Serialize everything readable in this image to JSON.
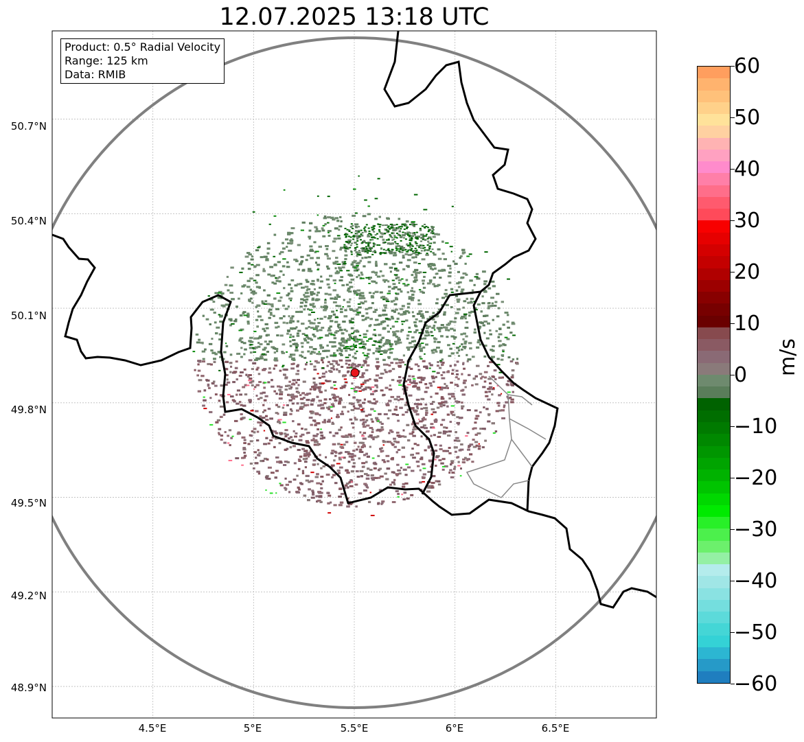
{
  "title": "12.07.2025 13:18 UTC",
  "info": {
    "product": "Product: 0.5° Radial Velocity",
    "range": "Range: 125 km",
    "data": "Data: RMIB"
  },
  "map": {
    "lon_range": [
      4.0,
      7.0
    ],
    "lat_range": [
      48.8,
      50.98
    ],
    "radar_site": {
      "lon": 5.51,
      "lat": 49.92,
      "color": "#e8141b"
    },
    "range_ring_color": "#808080",
    "grid": true,
    "y_ticks": [
      "50.7°N",
      "50.4°N",
      "50.1°N",
      "49.8°N",
      "49.5°N",
      "49.2°N",
      "48.9°N"
    ],
    "x_ticks": [
      "4.5°E",
      "5°E",
      "5.5°E",
      "6°E",
      "6.5°E"
    ]
  },
  "colorbar": {
    "label": "m/s",
    "range": [
      -60,
      60
    ],
    "ticks": [
      "60",
      "50",
      "40",
      "30",
      "20",
      "10",
      "0",
      "−10",
      "−20",
      "−30",
      "−40",
      "−50",
      "−60"
    ],
    "colors_top_to_bottom": [
      "#ff9e5e",
      "#ffb36e",
      "#ffc17a",
      "#ffd18a",
      "#ffe29a",
      "#ffd1a1",
      "#ffb3b3",
      "#ffa1c1",
      "#ff8bcc",
      "#ff7fa8",
      "#ff6e8a",
      "#ff5a6e",
      "#ff4a5a",
      "#f80000",
      "#e60000",
      "#d40000",
      "#c40000",
      "#b00000",
      "#9c0000",
      "#880000",
      "#770000",
      "#6a0000",
      "#874a4e",
      "#8a5a63",
      "#8a6a75",
      "#8a7a7a",
      "#6e8a6e",
      "#5a7d5a",
      "#006200",
      "#006e00",
      "#007a00",
      "#008800",
      "#009600",
      "#00a400",
      "#00b200",
      "#00c400",
      "#00d800",
      "#00ea00",
      "#28f028",
      "#4cf04c",
      "#6cf06c",
      "#94f0a4",
      "#b4ecec",
      "#a0e6e6",
      "#8ae2e2",
      "#74dede",
      "#5cdada",
      "#44d6d6",
      "#34d2d6",
      "#2cb6d2",
      "#269ac8",
      "#1f7ebf"
    ]
  }
}
